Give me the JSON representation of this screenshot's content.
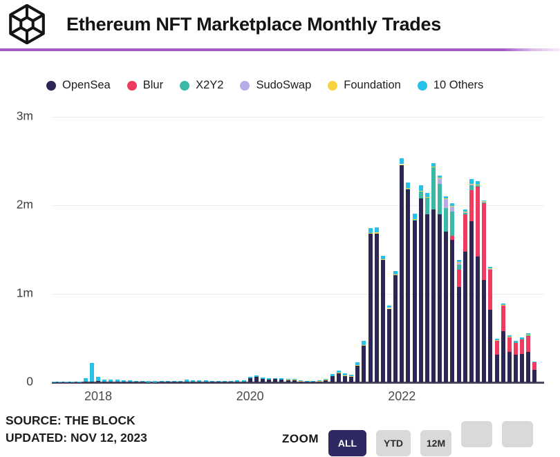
{
  "header": {
    "title": "Ethereum NFT Marketplace Monthly Trades",
    "logo": "the-block-cube-logo"
  },
  "divider_color": "#a55bc8",
  "legend": [
    {
      "label": "OpenSea",
      "color": "#2c2654"
    },
    {
      "label": "Blur",
      "color": "#ee3b5f"
    },
    {
      "label": "X2Y2",
      "color": "#3ab9a6"
    },
    {
      "label": "SudoSwap",
      "color": "#b5ace8"
    },
    {
      "label": "Foundation",
      "color": "#f5d440"
    },
    {
      "label": "10 Others",
      "color": "#25c1e9"
    }
  ],
  "chart_data": {
    "type": "bar",
    "stacked": true,
    "title": "Ethereum NFT Marketplace Monthly Trades",
    "unit": "millions of trades per month",
    "ylim": [
      0,
      3
    ],
    "grid": "horizontal",
    "legend_position": "top",
    "yticks": [
      {
        "label": "0",
        "value": 0
      },
      {
        "label": "1m",
        "value": 1
      },
      {
        "label": "2m",
        "value": 2
      },
      {
        "label": "3m",
        "value": 3
      }
    ],
    "xticks": [
      {
        "label": "2018",
        "index": 7
      },
      {
        "label": "2020",
        "index": 31
      },
      {
        "label": "2022",
        "index": 55
      }
    ],
    "categories": [
      "2017-06",
      "2017-07",
      "2017-08",
      "2017-09",
      "2017-10",
      "2017-11",
      "2017-12",
      "2018-01",
      "2018-02",
      "2018-03",
      "2018-04",
      "2018-05",
      "2018-06",
      "2018-07",
      "2018-08",
      "2018-09",
      "2018-10",
      "2018-11",
      "2018-12",
      "2019-01",
      "2019-02",
      "2019-03",
      "2019-04",
      "2019-05",
      "2019-06",
      "2019-07",
      "2019-08",
      "2019-09",
      "2019-10",
      "2019-11",
      "2019-12",
      "2020-01",
      "2020-02",
      "2020-03",
      "2020-04",
      "2020-05",
      "2020-06",
      "2020-07",
      "2020-08",
      "2020-09",
      "2020-10",
      "2020-11",
      "2020-12",
      "2021-01",
      "2021-02",
      "2021-03",
      "2021-04",
      "2021-05",
      "2021-06",
      "2021-07",
      "2021-08",
      "2021-09",
      "2021-10",
      "2021-11",
      "2021-12",
      "2022-01",
      "2022-02",
      "2022-03",
      "2022-04",
      "2022-05",
      "2022-06",
      "2022-07",
      "2022-08",
      "2022-09",
      "2022-10",
      "2022-11",
      "2022-12",
      "2023-01",
      "2023-02",
      "2023-03",
      "2023-04",
      "2023-05",
      "2023-06",
      "2023-07",
      "2023-08",
      "2023-09",
      "2023-10"
    ],
    "series": [
      {
        "name": "OpenSea",
        "color": "#2c2654",
        "values": [
          0,
          0,
          0,
          0,
          0,
          0.005,
          0.01,
          0.012,
          0.008,
          0.008,
          0.007,
          0.007,
          0.006,
          0.005,
          0.005,
          0.004,
          0.004,
          0.005,
          0.005,
          0.006,
          0.006,
          0.008,
          0.007,
          0.007,
          0.007,
          0.006,
          0.005,
          0.005,
          0.006,
          0.007,
          0.007,
          0.045,
          0.06,
          0.042,
          0.034,
          0.038,
          0.034,
          0.03,
          0.027,
          0.015,
          0.011,
          0.008,
          0.015,
          0.03,
          0.07,
          0.1,
          0.075,
          0.068,
          0.19,
          0.42,
          1.68,
          1.68,
          1.38,
          0.83,
          1.21,
          2.46,
          2.18,
          1.83,
          2.08,
          1.9,
          1.95,
          1.9,
          1.7,
          1.61,
          1.08,
          1.48,
          1.82,
          1.42,
          1.16,
          0.82,
          0.31,
          0.58,
          0.34,
          0.31,
          0.32,
          0.34,
          0.14
        ]
      },
      {
        "name": "Blur",
        "color": "#ee3b5f",
        "values": [
          0,
          0,
          0,
          0,
          0,
          0,
          0,
          0,
          0,
          0,
          0,
          0,
          0,
          0,
          0,
          0,
          0,
          0,
          0,
          0,
          0,
          0,
          0,
          0,
          0,
          0,
          0,
          0,
          0,
          0,
          0,
          0,
          0,
          0,
          0,
          0,
          0,
          0,
          0,
          0,
          0,
          0,
          0,
          0,
          0,
          0,
          0,
          0,
          0,
          0,
          0,
          0,
          0,
          0,
          0,
          0,
          0,
          0,
          0,
          0,
          0,
          0,
          0,
          0.05,
          0.19,
          0.42,
          0.35,
          0.79,
          0.87,
          0.45,
          0.16,
          0.29,
          0.17,
          0.14,
          0.17,
          0.19,
          0.09
        ]
      },
      {
        "name": "X2Y2",
        "color": "#3ab9a6",
        "values": [
          0,
          0,
          0,
          0,
          0,
          0,
          0,
          0,
          0,
          0,
          0,
          0,
          0,
          0,
          0,
          0,
          0,
          0,
          0,
          0,
          0,
          0,
          0,
          0,
          0,
          0,
          0,
          0,
          0,
          0,
          0,
          0,
          0,
          0,
          0,
          0,
          0,
          0,
          0,
          0,
          0,
          0,
          0,
          0,
          0,
          0,
          0,
          0,
          0,
          0,
          0,
          0,
          0,
          0,
          0,
          0,
          0.01,
          0.01,
          0.08,
          0.19,
          0.48,
          0.34,
          0.27,
          0.27,
          0.06,
          0.02,
          0.06,
          0.02,
          0.005,
          0.01,
          0.004,
          0.004,
          0.003,
          0.003,
          0.003,
          0.004,
          0
        ]
      },
      {
        "name": "SudoSwap",
        "color": "#b5ace8",
        "values": [
          0,
          0,
          0,
          0,
          0,
          0,
          0,
          0,
          0,
          0,
          0,
          0,
          0,
          0,
          0,
          0,
          0,
          0,
          0,
          0,
          0,
          0,
          0,
          0,
          0,
          0,
          0,
          0,
          0,
          0,
          0,
          0,
          0,
          0,
          0,
          0,
          0,
          0,
          0,
          0,
          0,
          0,
          0,
          0,
          0,
          0,
          0,
          0,
          0,
          0,
          0,
          0,
          0,
          0,
          0,
          0,
          0,
          0,
          0,
          0,
          0,
          0.07,
          0.1,
          0.06,
          0.02,
          0.005,
          0.005,
          0.003,
          0.002,
          0.002,
          0,
          0,
          0,
          0,
          0,
          0,
          0
        ]
      },
      {
        "name": "Foundation",
        "color": "#f5d440",
        "values": [
          0,
          0,
          0,
          0,
          0,
          0,
          0,
          0,
          0,
          0,
          0,
          0,
          0,
          0,
          0,
          0,
          0,
          0,
          0,
          0,
          0,
          0,
          0,
          0,
          0,
          0,
          0,
          0,
          0,
          0,
          0,
          0,
          0,
          0,
          0,
          0,
          0,
          0.002,
          0.002,
          0.002,
          0.002,
          0.002,
          0.003,
          0.002,
          0.004,
          0.006,
          0.005,
          0.004,
          0.005,
          0.005,
          0.01,
          0.012,
          0.012,
          0.01,
          0.008,
          0.005,
          0.004,
          0.004,
          0.004,
          0.005,
          0.01,
          0.005,
          0.005,
          0.004,
          0.01,
          0.004,
          0.004,
          0.004,
          0.01,
          0.004,
          0.002,
          0.002,
          0.002,
          0.002,
          0.002,
          0.002,
          0.001
        ]
      },
      {
        "name": "10 Others",
        "color": "#25c1e9",
        "values": [
          0.006,
          0.008,
          0.006,
          0.005,
          0.01,
          0.045,
          0.21,
          0.048,
          0.026,
          0.024,
          0.021,
          0.019,
          0.016,
          0.014,
          0.013,
          0.011,
          0.011,
          0.012,
          0.011,
          0.012,
          0.012,
          0.026,
          0.015,
          0.014,
          0.016,
          0.013,
          0.012,
          0.011,
          0.012,
          0.014,
          0.013,
          0.015,
          0.02,
          0.013,
          0.011,
          0.012,
          0.011,
          0.01,
          0.008,
          0.005,
          0.004,
          0.003,
          0.005,
          0.01,
          0.02,
          0.03,
          0.02,
          0.018,
          0.035,
          0.045,
          0.05,
          0.058,
          0.038,
          0.03,
          0.042,
          0.065,
          0.066,
          0.066,
          0.066,
          0.045,
          0.04,
          0.025,
          0.025,
          0.026,
          0.02,
          0.021,
          0.061,
          0.036,
          0.01,
          0.018,
          0.013,
          0.016,
          0.017,
          0.012,
          0.014,
          0.021,
          0.005
        ]
      }
    ]
  },
  "footer": {
    "source": "SOURCE: THE BLOCK",
    "updated": "UPDATED: NOV 12, 2023"
  },
  "zoom": {
    "label": "ZOOM",
    "buttons": [
      {
        "label": "ALL",
        "active": true
      },
      {
        "label": "YTD",
        "active": false
      },
      {
        "label": "12M",
        "active": false
      },
      {
        "label": "",
        "active": false
      },
      {
        "label": "",
        "active": false
      }
    ]
  }
}
